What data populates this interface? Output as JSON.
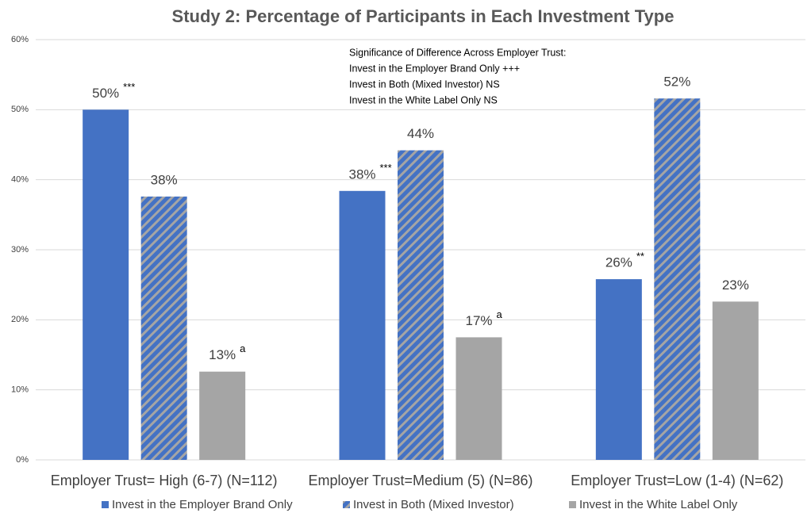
{
  "chart_data": {
    "type": "bar",
    "title": "Study 2: Percentage of Participants in Each Investment Type",
    "categories": [
      "Employer Trust= High (6-7) (N=112)",
      "Employer Trust=Medium (5) (N=86)",
      "Employer Trust=Low (1-4) (N=62)"
    ],
    "series": [
      {
        "name": "Invest in the Employer Brand Only",
        "color": "#4472c4",
        "values": [
          50,
          38.4,
          25.8
        ],
        "value_labels": [
          "50%",
          "38%",
          "26%"
        ],
        "markers": [
          "***",
          "***",
          "**"
        ]
      },
      {
        "name": "Invest in Both (Mixed Investor)",
        "color": "#4472c4",
        "hatch_color": "#a5a5a5",
        "values": [
          37.6,
          44.2,
          51.6
        ],
        "value_labels": [
          "38%",
          "44%",
          "52%"
        ]
      },
      {
        "name": "Invest in the White Label Only",
        "color": "#a5a5a5",
        "values": [
          12.6,
          17.5,
          22.6
        ],
        "value_labels": [
          "13%",
          "17%",
          "23%"
        ],
        "markers": [
          "a",
          "a",
          null
        ]
      }
    ],
    "ylim": [
      0,
      60
    ],
    "yticks": [
      {
        "value": 0,
        "label": "0%"
      },
      {
        "value": 10,
        "label": "10%"
      },
      {
        "value": 20,
        "label": "20%"
      },
      {
        "value": 30,
        "label": "30%"
      },
      {
        "value": 40,
        "label": "40%"
      },
      {
        "value": 50,
        "label": "50%"
      },
      {
        "value": 60,
        "label": "60%"
      }
    ],
    "grid": true,
    "legend": "bottom",
    "note": [
      "Significance of Difference Across Employer Trust:",
      "Invest in the Employer Brand Only +++",
      "Invest in Both (Mixed Investor) NS",
      "Invest in the White Label Only  NS"
    ]
  }
}
